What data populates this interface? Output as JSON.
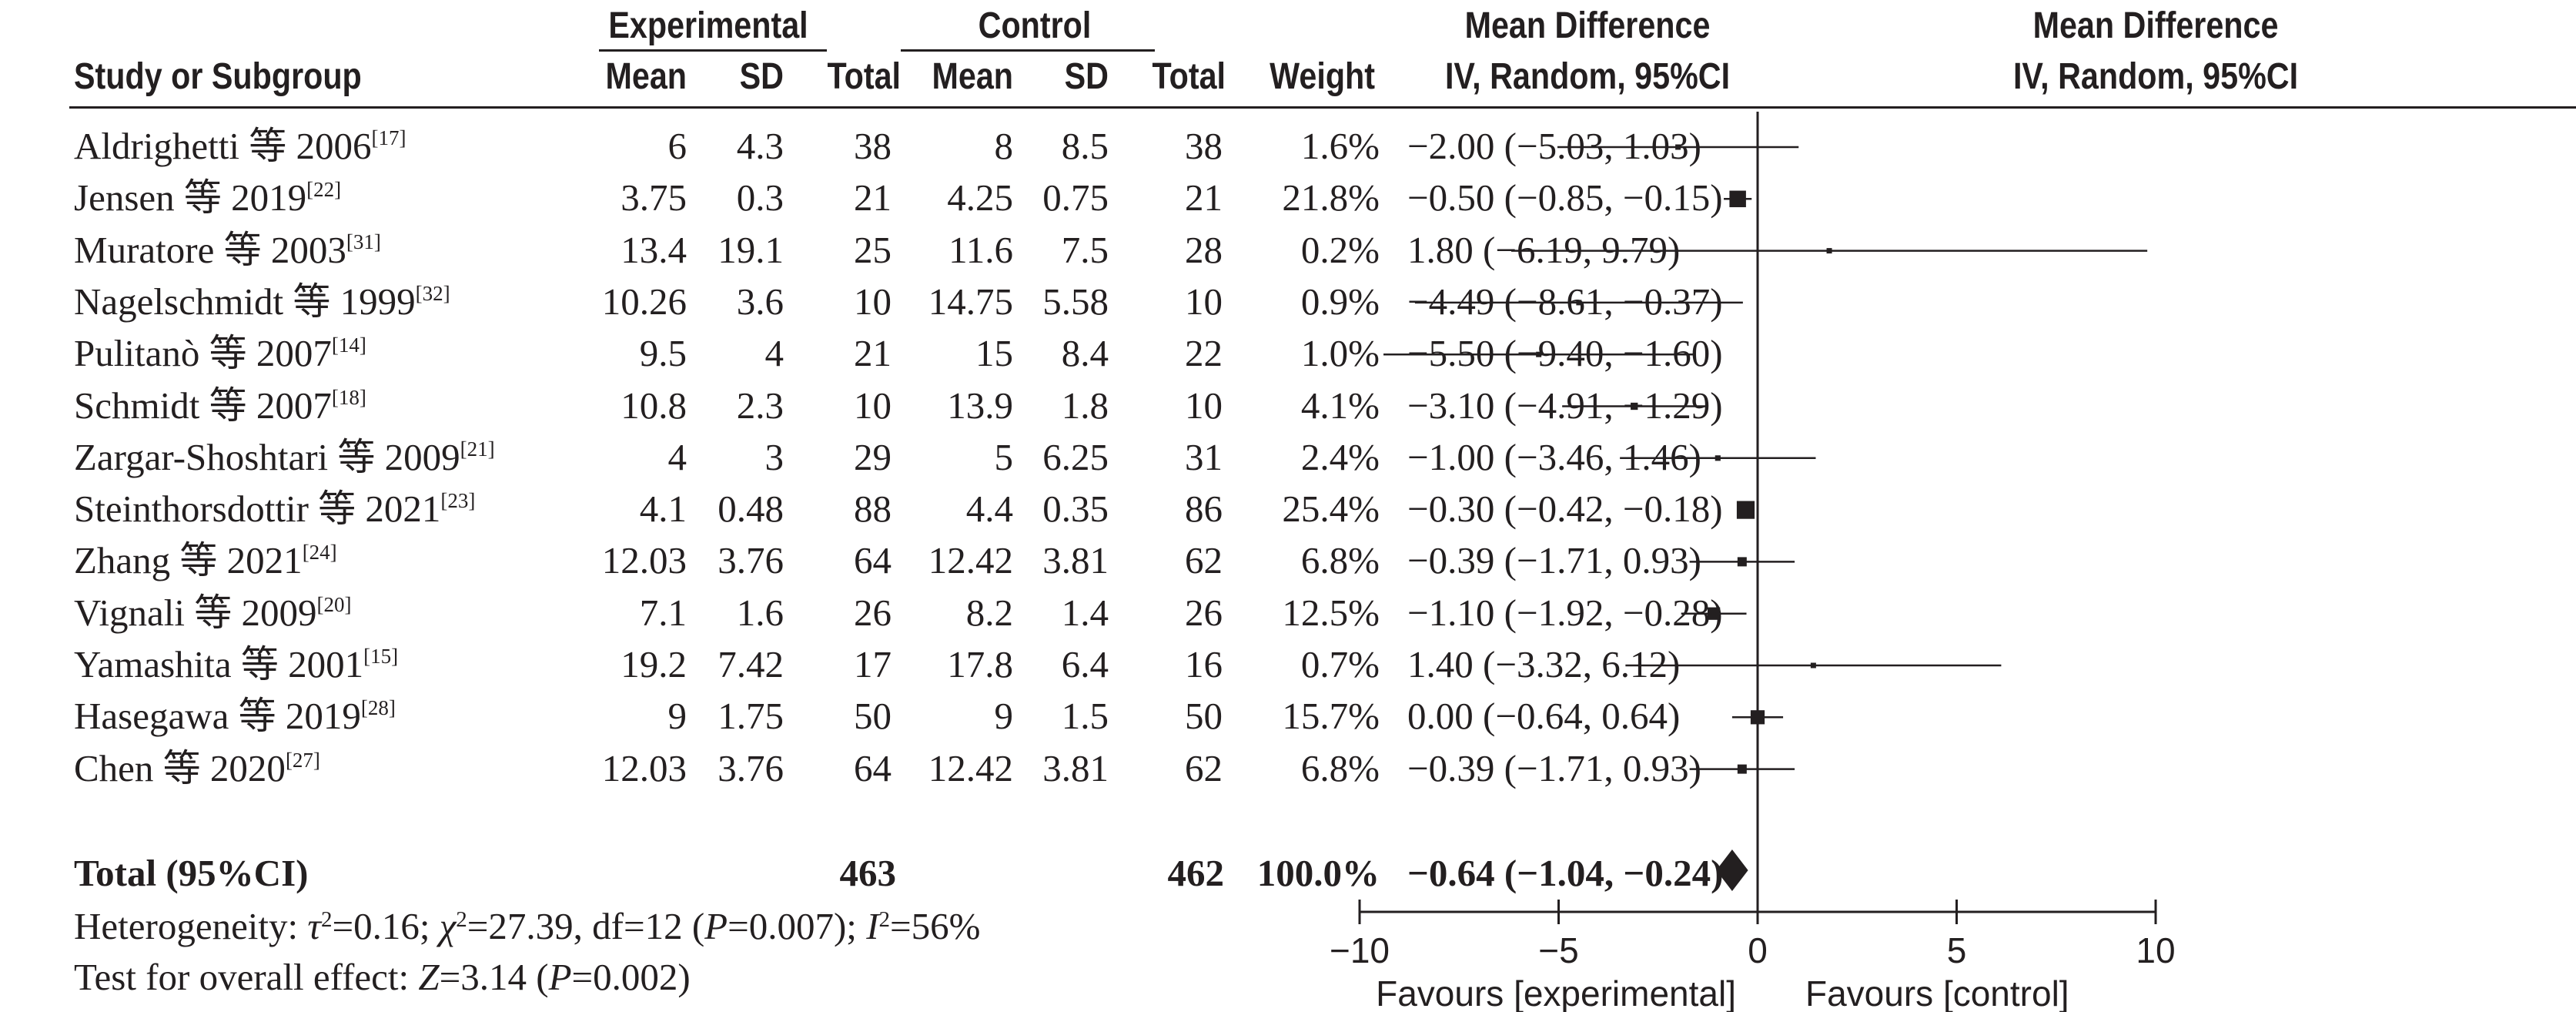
{
  "headers": {
    "group_experimental": "Experimental",
    "group_control": "Control",
    "group_md_text": "Mean Difference",
    "group_md_plot": "Mean Difference",
    "study": "Study or Subgroup",
    "mean": "Mean",
    "sd": "SD",
    "total": "Total",
    "weight": "Weight",
    "method_text": "IV, Random, 95%CI",
    "method_plot": "IV, Random, 95%CI"
  },
  "chart_data": {
    "type": "forest",
    "x_axis": {
      "xlim": [
        -10,
        10
      ],
      "ticks": [
        -10,
        -5,
        0,
        5,
        10
      ],
      "tick_labels": [
        "−10",
        "−5",
        "0",
        "5",
        "10"
      ],
      "favours_left": "Favours [experimental]",
      "favours_right": "Favours [control]"
    },
    "studies": [
      {
        "name": "Aldrighetti 等 2006",
        "ref": "[17]",
        "exp_mean": "6",
        "exp_sd": "4.3",
        "exp_total": "38",
        "ctl_mean": "8",
        "ctl_sd": "8.5",
        "ctl_total": "38",
        "weight": "1.6%",
        "weight_value": 1.6,
        "ci_text": "−2.00 (−5.03, 1.03)",
        "md": -2.0,
        "lo": -5.03,
        "hi": 1.03
      },
      {
        "name": "Jensen 等 2019",
        "ref": "[22]",
        "exp_mean": "3.75",
        "exp_sd": "0.3",
        "exp_total": "21",
        "ctl_mean": "4.25",
        "ctl_sd": "0.75",
        "ctl_total": "21",
        "weight": "21.8%",
        "weight_value": 21.8,
        "ci_text": "−0.50 (−0.85, −0.15)",
        "md": -0.5,
        "lo": -0.85,
        "hi": -0.15
      },
      {
        "name": "Muratore 等 2003",
        "ref": "[31]",
        "exp_mean": "13.4",
        "exp_sd": "19.1",
        "exp_total": "25",
        "ctl_mean": "11.6",
        "ctl_sd": "7.5",
        "ctl_total": "28",
        "weight": "0.2%",
        "weight_value": 0.2,
        "ci_text": "1.80 (−6.19, 9.79)",
        "md": 1.8,
        "lo": -6.19,
        "hi": 9.79
      },
      {
        "name": "Nagelschmidt 等 1999",
        "ref": "[32]",
        "exp_mean": "10.26",
        "exp_sd": "3.6",
        "exp_total": "10",
        "ctl_mean": "14.75",
        "ctl_sd": "5.58",
        "ctl_total": "10",
        "weight": "0.9%",
        "weight_value": 0.9,
        "ci_text": "−4.49 (−8.61, −0.37)",
        "md": -4.49,
        "lo": -8.61,
        "hi": -0.37
      },
      {
        "name": "Pulitanò 等 2007",
        "ref": "[14]",
        "exp_mean": "9.5",
        "exp_sd": "4",
        "exp_total": "21",
        "ctl_mean": "15",
        "ctl_sd": "8.4",
        "ctl_total": "22",
        "weight": "1.0%",
        "weight_value": 1.0,
        "ci_text": "−5.50 (−9.40, −1.60)",
        "md": -5.5,
        "lo": -9.4,
        "hi": -1.6
      },
      {
        "name": "Schmidt 等 2007",
        "ref": "[18]",
        "exp_mean": "10.8",
        "exp_sd": "2.3",
        "exp_total": "10",
        "ctl_mean": "13.9",
        "ctl_sd": "1.8",
        "ctl_total": "10",
        "weight": "4.1%",
        "weight_value": 4.1,
        "ci_text": "−3.10 (−4.91, −1.29)",
        "md": -3.1,
        "lo": -4.91,
        "hi": -1.29
      },
      {
        "name": "Zargar-Shoshtari 等 2009",
        "ref": "[21]",
        "exp_mean": "4",
        "exp_sd": "3",
        "exp_total": "29",
        "ctl_mean": "5",
        "ctl_sd": "6.25",
        "ctl_total": "31",
        "weight": "2.4%",
        "weight_value": 2.4,
        "ci_text": "−1.00 (−3.46, 1.46)",
        "md": -1.0,
        "lo": -3.46,
        "hi": 1.46
      },
      {
        "name": "Steinthorsdottir 等 2021",
        "ref": "[23]",
        "exp_mean": "4.1",
        "exp_sd": "0.48",
        "exp_total": "88",
        "ctl_mean": "4.4",
        "ctl_sd": "0.35",
        "ctl_total": "86",
        "weight": "25.4%",
        "weight_value": 25.4,
        "ci_text": "−0.30 (−0.42, −0.18)",
        "md": -0.3,
        "lo": -0.42,
        "hi": -0.18
      },
      {
        "name": "Zhang 等 2021",
        "ref": "[24]",
        "exp_mean": "12.03",
        "exp_sd": "3.76",
        "exp_total": "64",
        "ctl_mean": "12.42",
        "ctl_sd": "3.81",
        "ctl_total": "62",
        "weight": "6.8%",
        "weight_value": 6.8,
        "ci_text": "−0.39 (−1.71, 0.93)",
        "md": -0.39,
        "lo": -1.71,
        "hi": 0.93
      },
      {
        "name": "Vignali 等 2009",
        "ref": "[20]",
        "exp_mean": "7.1",
        "exp_sd": "1.6",
        "exp_total": "26",
        "ctl_mean": "8.2",
        "ctl_sd": "1.4",
        "ctl_total": "26",
        "weight": "12.5%",
        "weight_value": 12.5,
        "ci_text": "−1.10 (−1.92, −0.28)",
        "md": -1.1,
        "lo": -1.92,
        "hi": -0.28
      },
      {
        "name": "Yamashita 等 2001",
        "ref": "[15]",
        "exp_mean": "19.2",
        "exp_sd": "7.42",
        "exp_total": "17",
        "ctl_mean": "17.8",
        "ctl_sd": "6.4",
        "ctl_total": "16",
        "weight": "0.7%",
        "weight_value": 0.7,
        "ci_text": "1.40 (−3.32, 6.12)",
        "md": 1.4,
        "lo": -3.32,
        "hi": 6.12
      },
      {
        "name": "Hasegawa 等 2019",
        "ref": "[28]",
        "exp_mean": "9",
        "exp_sd": "1.75",
        "exp_total": "50",
        "ctl_mean": "9",
        "ctl_sd": "1.5",
        "ctl_total": "50",
        "weight": "15.7%",
        "weight_value": 15.7,
        "ci_text": "0.00 (−0.64, 0.64)",
        "md": 0.0,
        "lo": -0.64,
        "hi": 0.64
      },
      {
        "name": "Chen 等 2020",
        "ref": "[27]",
        "exp_mean": "12.03",
        "exp_sd": "3.76",
        "exp_total": "64",
        "ctl_mean": "12.42",
        "ctl_sd": "3.81",
        "ctl_total": "62",
        "weight": "6.8%",
        "weight_value": 6.8,
        "ci_text": "−0.39 (−1.71, 0.93)",
        "md": -0.39,
        "lo": -1.71,
        "hi": 0.93
      }
    ],
    "total": {
      "label": "Total (95%CI)",
      "exp_total": "463",
      "ctl_total": "462",
      "weight": "100.0%",
      "ci_text": "−0.64 (−1.04, −0.24)",
      "md": -0.64,
      "lo": -1.04,
      "hi": -0.24
    }
  },
  "heterogeneity": {
    "prefix": "Heterogeneity: ",
    "tau": "τ",
    "tau_val": "=0.16; ",
    "chi": "χ",
    "chi_val": "=27.39, df=12 (",
    "p": "P",
    "p_val": "=0.007); ",
    "i": "I",
    "i_val": "=56%",
    "sq": "2"
  },
  "overall": {
    "prefix": "Test for overall effect: ",
    "z": "Z",
    "z_val": "=3.14 (",
    "p": "P",
    "p_val": "=0.002)"
  }
}
